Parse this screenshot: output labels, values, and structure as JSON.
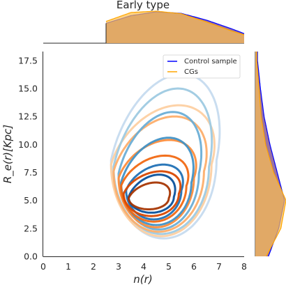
{
  "chart_data": {
    "type": "contour",
    "title": "Early type",
    "xlabel": "n(r)",
    "ylabel": "R_e(r)[Kpc]",
    "xlim": [
      0,
      8
    ],
    "ylim": [
      0,
      18.3
    ],
    "xticks": [
      "0",
      "1",
      "2",
      "3",
      "4",
      "5",
      "6",
      "7",
      "8"
    ],
    "yticks": [
      "0.0",
      "2.5",
      "5.0",
      "7.5",
      "10.0",
      "12.5",
      "15.0",
      "17.5"
    ],
    "legend": {
      "placement": "top-right",
      "entries": [
        "Control sample",
        "CGs"
      ]
    },
    "series": [
      {
        "name": "Control sample",
        "color": "#1f5fa8",
        "line_color": "#0000ff",
        "fill_color": "#8a5a8f",
        "colormap": "Blues",
        "contours": [
          {
            "level": 1,
            "center": [
              4.3,
              5.3
            ],
            "n_halfwidth": 0.9,
            "re_low": 3.9,
            "re_high": 7.3,
            "color": "#08519c"
          },
          {
            "level": 2,
            "center": [
              4.4,
              5.9
            ],
            "n_halfwidth": 1.1,
            "re_low": 3.3,
            "re_high": 8.2,
            "color": "#2171b5"
          },
          {
            "level": 3,
            "center": [
              4.5,
              6.6
            ],
            "n_halfwidth": 1.4,
            "re_low": 2.8,
            "re_high": 10.6,
            "color": "#4292c6"
          },
          {
            "level": 4,
            "center": [
              4.6,
              7.4
            ],
            "n_halfwidth": 1.6,
            "re_low": 2.4,
            "re_high": 12.9,
            "color": "#6baed6"
          },
          {
            "level": 5,
            "center": [
              4.7,
              8.0
            ],
            "n_halfwidth": 1.9,
            "re_low": 2.0,
            "re_high": 15.0,
            "color": "#9ecae1"
          },
          {
            "level": 6,
            "center": [
              4.8,
              8.6
            ],
            "n_halfwidth": 2.1,
            "re_low": 1.6,
            "re_high": 16.3,
            "color": "#c6dbef"
          }
        ],
        "marginal_n": {
          "x": [
            2.5,
            3.5,
            4.5,
            5.5,
            6.5,
            7.5,
            8
          ],
          "density": [
            0.62,
            0.86,
            0.98,
            0.93,
            0.72,
            0.45,
            0.3
          ]
        },
        "marginal_re": {
          "y": [
            0,
            2.5,
            5,
            7.5,
            10,
            12.5,
            15,
            17.5
          ],
          "density": [
            0.18,
            0.32,
            0.4,
            0.3,
            0.2,
            0.12,
            0.07,
            0.03
          ]
        }
      },
      {
        "name": "CGs",
        "color": "#e6550d",
        "line_color": "#ffa500",
        "fill_color": "#ffc04d",
        "colormap": "Oranges",
        "contours": [
          {
            "level": 1,
            "center": [
              4.2,
              5.2
            ],
            "n_halfwidth": 0.8,
            "re_low": 4.2,
            "re_high": 6.6,
            "color": "#a63603"
          },
          {
            "level": 2,
            "center": [
              4.3,
              5.6
            ],
            "n_halfwidth": 1.1,
            "re_low": 3.6,
            "re_high": 7.6,
            "color": "#d94801"
          },
          {
            "level": 3,
            "center": [
              4.4,
              6.3
            ],
            "n_halfwidth": 1.3,
            "re_low": 3.1,
            "re_high": 9.0,
            "color": "#f16913"
          },
          {
            "level": 4,
            "center": [
              4.5,
              7.0
            ],
            "n_halfwidth": 1.5,
            "re_low": 2.6,
            "re_high": 10.4,
            "color": "#fd8d3c"
          },
          {
            "level": 5,
            "center": [
              4.6,
              7.6
            ],
            "n_halfwidth": 1.8,
            "re_low": 2.2,
            "re_high": 12.5,
            "color": "#fdae6b"
          },
          {
            "level": 6,
            "center": [
              4.7,
              8.2
            ],
            "n_halfwidth": 2.0,
            "re_low": 1.8,
            "re_high": 13.5,
            "color": "#fdd0a2"
          }
        ],
        "marginal_n": {
          "x": [
            2.5,
            3.5,
            4.5,
            5.5,
            6.5,
            7.5,
            8
          ],
          "density": [
            0.68,
            0.96,
            1.0,
            0.92,
            0.66,
            0.38,
            0.26
          ]
        },
        "marginal_re": {
          "y": [
            0,
            2.5,
            5,
            7.5,
            10,
            12.5,
            15,
            17.5
          ],
          "density": [
            0.15,
            0.35,
            0.42,
            0.25,
            0.14,
            0.08,
            0.05,
            0.02
          ]
        }
      }
    ]
  }
}
